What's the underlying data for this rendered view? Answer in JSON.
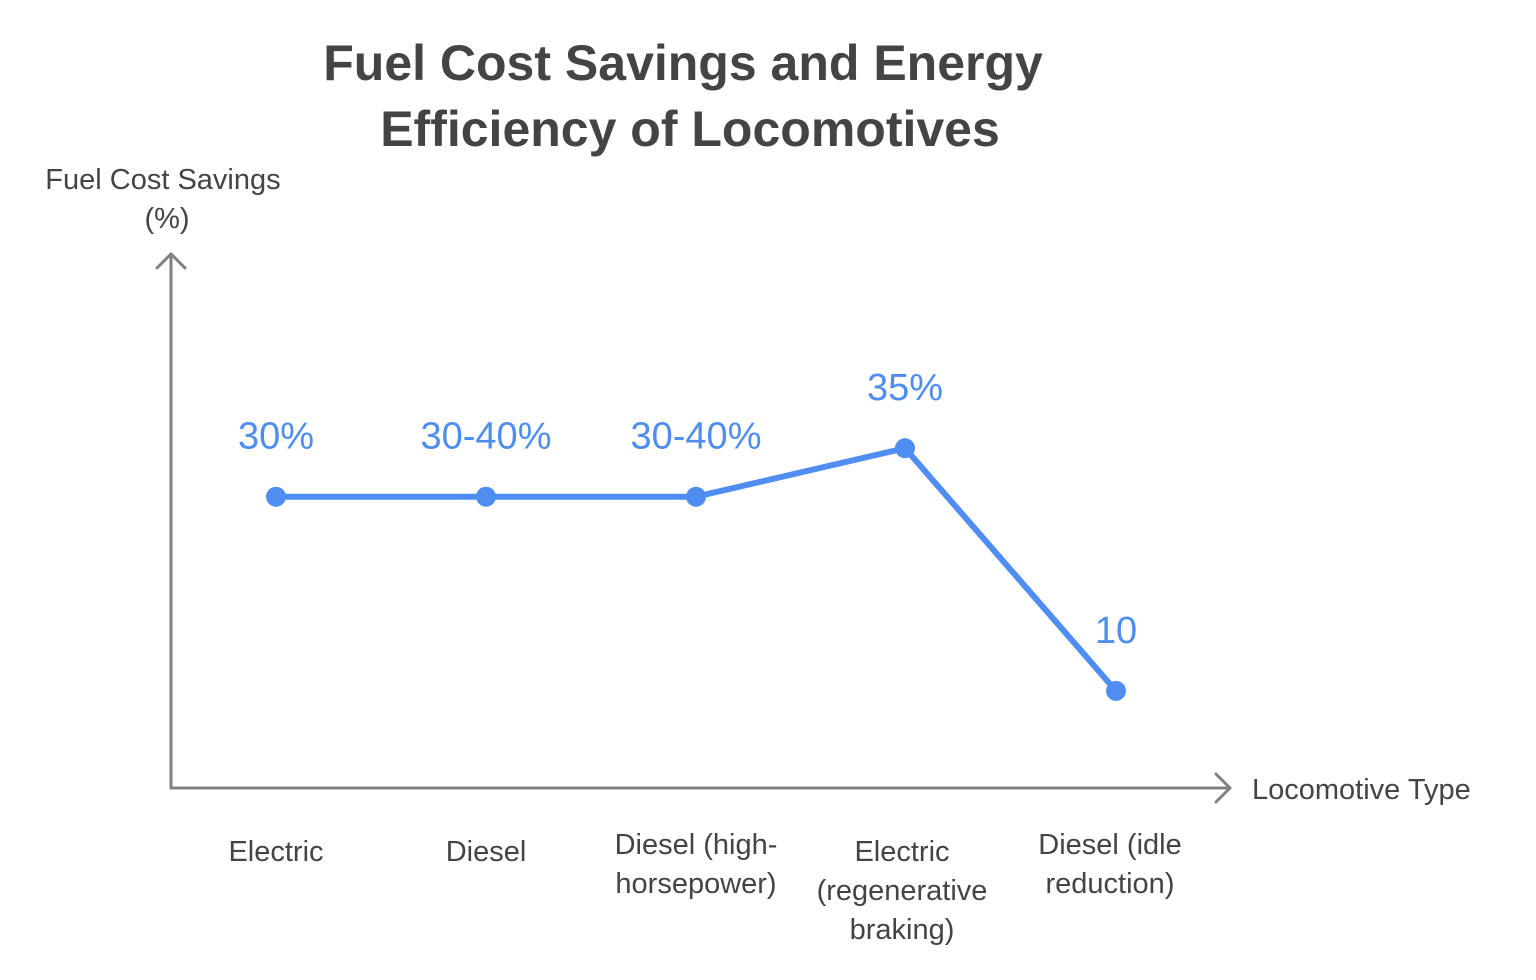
{
  "chart_data": {
    "type": "line",
    "title": "Fuel Cost Savings and Energy Efficiency of Locomotives",
    "xlabel": "Locomotive Type",
    "ylabel": "Fuel Cost Savings (%)",
    "categories": [
      "Electric",
      "Diesel",
      "Diesel (high-horsepower)",
      "Electric (regenerative braking)",
      "Diesel (idle reduction)"
    ],
    "values": [
      30,
      30,
      30,
      35,
      10
    ],
    "data_labels": [
      "30%",
      "30-40%",
      "30-40%",
      "35%",
      "10"
    ],
    "ylim": [
      0,
      55
    ],
    "grid": false,
    "legend": "none",
    "colors": {
      "line": "#4f8ef0",
      "axis": "#808080",
      "text": "#444444"
    }
  }
}
